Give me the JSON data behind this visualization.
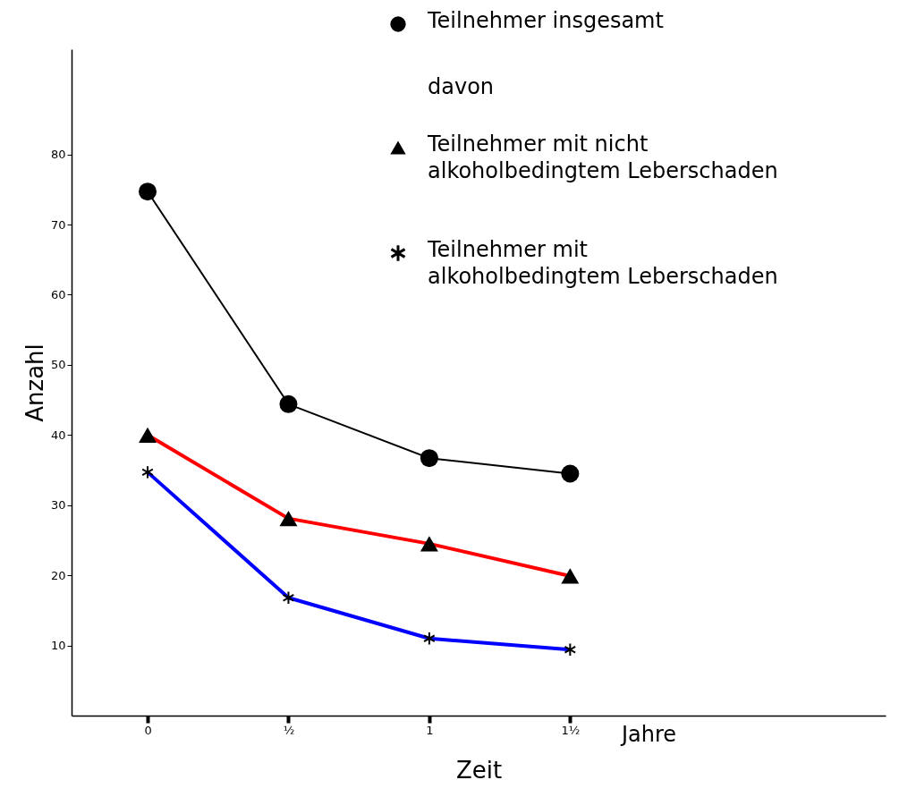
{
  "chart_data": {
    "type": "line",
    "xlabel": "Zeit",
    "ylabel": "Anzahl",
    "x": [
      0,
      0.5,
      1,
      1.5
    ],
    "xlim": [
      -0.27,
      2.62
    ],
    "xticks": [
      0,
      {
        "value": 0.5,
        "label": "½"
      },
      1,
      {
        "value": 1.5,
        "label": "1½"
      }
    ],
    "ylim": [
      0,
      95
    ],
    "yticks": [
      10,
      20,
      30,
      40,
      50,
      60,
      70,
      80
    ],
    "grid": false,
    "legend": "top right",
    "annotations": [
      "davon",
      "Jahre"
    ],
    "series": [
      {
        "name": "Teilnehmer insgesamt",
        "color": "#000000",
        "marker": "circle",
        "values": [
          74.7,
          44.4,
          36.7,
          34.5
        ]
      },
      {
        "name": "Teilnehmer mit nicht alkoholbedingtem Leberschaden",
        "color": "#ff0000",
        "marker": "triangle",
        "values": [
          40,
          28.1,
          24.5,
          19.9
        ]
      },
      {
        "name": "Teilnehmer mit alkoholbedingtem Leberschaden",
        "color": "#0000ff",
        "marker": "cross",
        "values": [
          34.7,
          16.8,
          11.0,
          9.4
        ]
      }
    ]
  }
}
